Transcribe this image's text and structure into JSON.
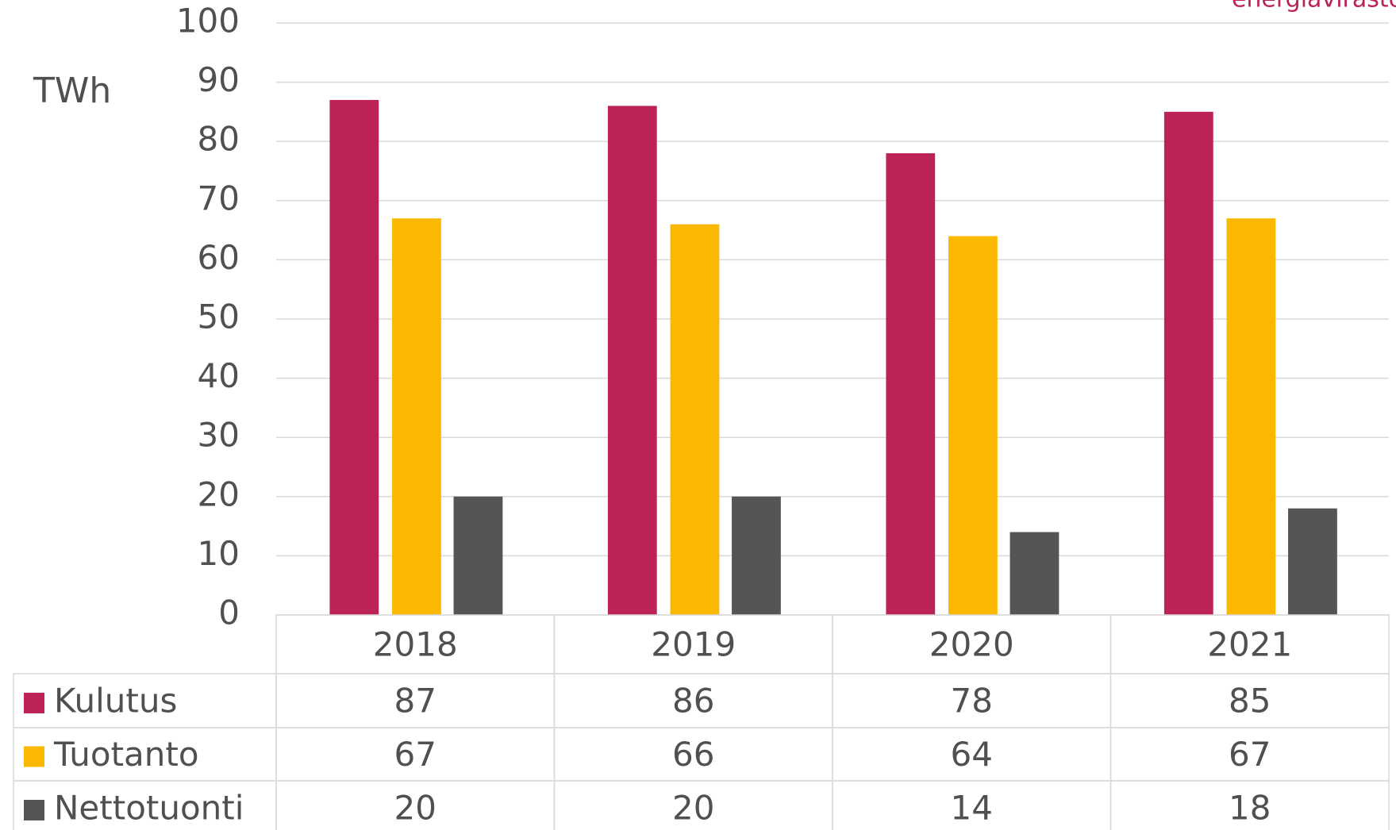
{
  "brand": "energiavirasto",
  "chart_data": {
    "type": "bar",
    "y_label": "TWh",
    "categories": [
      "2018",
      "2019",
      "2020",
      "2021"
    ],
    "series": [
      {
        "name": "Kulutus",
        "color": "#bc2255",
        "values": [
          87,
          86,
          78,
          85
        ]
      },
      {
        "name": "Tuotanto",
        "color": "#fab900",
        "values": [
          67,
          66,
          64,
          67
        ]
      },
      {
        "name": "Nettotuonti",
        "color": "#555555",
        "values": [
          20,
          20,
          14,
          18
        ]
      }
    ],
    "ylim": [
      0,
      100
    ],
    "yticks": [
      0,
      10,
      20,
      30,
      40,
      50,
      60,
      70,
      80,
      90,
      100
    ],
    "grid": true,
    "data_table": true
  }
}
